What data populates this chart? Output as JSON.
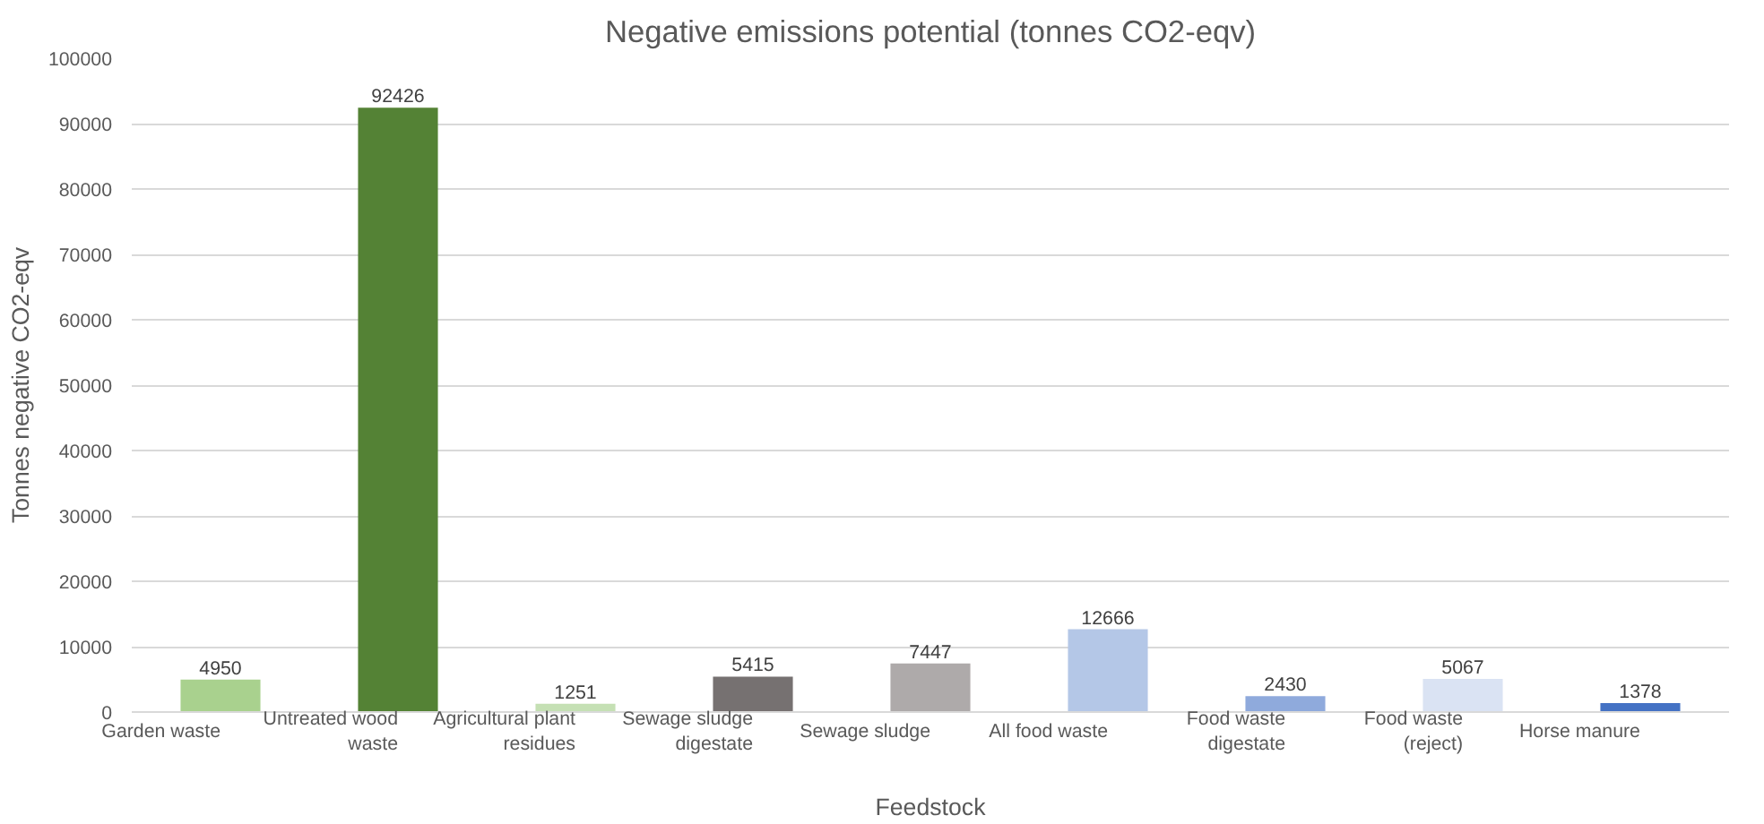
{
  "chart_data": {
    "type": "bar",
    "title": "Negative emissions potential (tonnes CO2-eqv)",
    "xlabel": "Feedstock",
    "ylabel": "Tonnes negative CO2-eqv",
    "categories": [
      "Garden waste",
      "Untreated wood waste",
      "Agricultural plant residues",
      "Sewage sludge digestate",
      "Sewage sludge",
      "All food waste",
      "Food waste digestate",
      "Food waste (reject)",
      "Horse manure"
    ],
    "values": [
      4950,
      92426,
      1251,
      5415,
      7447,
      12666,
      2430,
      5067,
      1378
    ],
    "colors": [
      "#a9d18e",
      "#548235",
      "#c5e0b4",
      "#767171",
      "#aeaaaa",
      "#b4c7e7",
      "#8faadc",
      "#dae3f3",
      "#4472c4"
    ],
    "ylim": [
      0,
      100000
    ],
    "yticks": [
      0,
      10000,
      20000,
      30000,
      40000,
      50000,
      60000,
      70000,
      80000,
      90000,
      100000
    ],
    "grid": "y",
    "data_labels": true
  }
}
